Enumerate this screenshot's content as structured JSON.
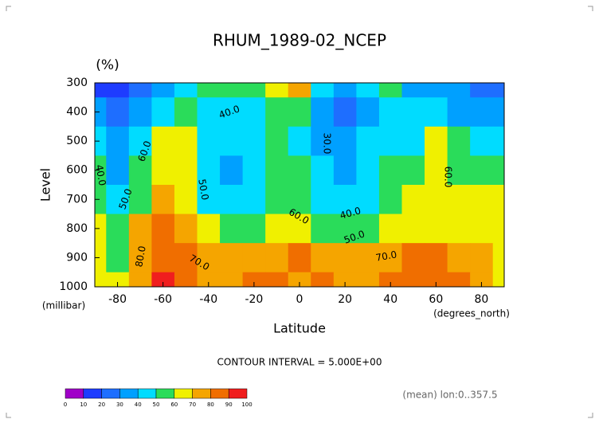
{
  "chart_data": {
    "type": "contour",
    "title": "RHUM_1989-02_NCEP",
    "unit_label": "(%)",
    "y_label": "Level",
    "y_unit": "(millibar)",
    "x_label": "Latitude",
    "x_unit": "(degrees_north)",
    "contour_interval_text": "CONTOUR INTERVAL = 5.000E+00",
    "footnote": "(mean) lon:0..357.5",
    "xlim": [
      -90,
      90
    ],
    "ylim": [
      1000,
      300
    ],
    "xticks": [
      -80,
      -60,
      -40,
      -20,
      0,
      20,
      40,
      60,
      80
    ],
    "yticks": [
      300,
      400,
      500,
      600,
      700,
      800,
      900,
      1000
    ],
    "latitudes": [
      -90,
      -80,
      -70,
      -60,
      -50,
      -40,
      -30,
      -20,
      -10,
      0,
      10,
      20,
      30,
      40,
      50,
      60,
      70,
      80,
      90
    ],
    "levels": [
      300,
      400,
      500,
      600,
      700,
      800,
      900,
      1000
    ],
    "values": [
      [
        15,
        15,
        20,
        30,
        45,
        55,
        55,
        50,
        60,
        70,
        45,
        35,
        40,
        50,
        35,
        30,
        30,
        25,
        20
      ],
      [
        30,
        25,
        30,
        45,
        50,
        45,
        40,
        40,
        55,
        50,
        35,
        28,
        35,
        45,
        40,
        40,
        35,
        35,
        30
      ],
      [
        45,
        35,
        45,
        60,
        60,
        45,
        40,
        40,
        50,
        48,
        35,
        30,
        40,
        45,
        45,
        60,
        50,
        45,
        45
      ],
      [
        50,
        38,
        50,
        65,
        60,
        45,
        38,
        40,
        55,
        50,
        40,
        35,
        40,
        50,
        55,
        65,
        55,
        55,
        55
      ],
      [
        55,
        40,
        55,
        70,
        65,
        48,
        40,
        42,
        55,
        58,
        48,
        40,
        45,
        55,
        62,
        65,
        65,
        65,
        65
      ],
      [
        65,
        50,
        70,
        80,
        70,
        60,
        55,
        55,
        62,
        68,
        58,
        50,
        52,
        60,
        65,
        65,
        65,
        68,
        65
      ],
      [
        60,
        55,
        75,
        85,
        80,
        72,
        72,
        72,
        75,
        80,
        75,
        72,
        70,
        75,
        80,
        80,
        75,
        70,
        60
      ],
      [
        65,
        60,
        75,
        90,
        85,
        75,
        78,
        80,
        80,
        75,
        80,
        78,
        75,
        80,
        85,
        85,
        80,
        75,
        65
      ]
    ],
    "contour_labels": [
      "40.0",
      "30.0",
      "60.0",
      "40.0",
      "50.0",
      "50.0",
      "60.0",
      "40.0",
      "50.0",
      "80.0",
      "70.0",
      "70.0",
      "60.0"
    ],
    "colorbar": {
      "levels": [
        0,
        10,
        20,
        30,
        40,
        50,
        60,
        70,
        80,
        90,
        100
      ],
      "colors": [
        "#a000c8",
        "#1e3cff",
        "#1e6eff",
        "#00a0ff",
        "#00dcff",
        "#2adc5a",
        "#f0f000",
        "#f5a500",
        "#f06e00",
        "#f01e1e"
      ]
    }
  }
}
